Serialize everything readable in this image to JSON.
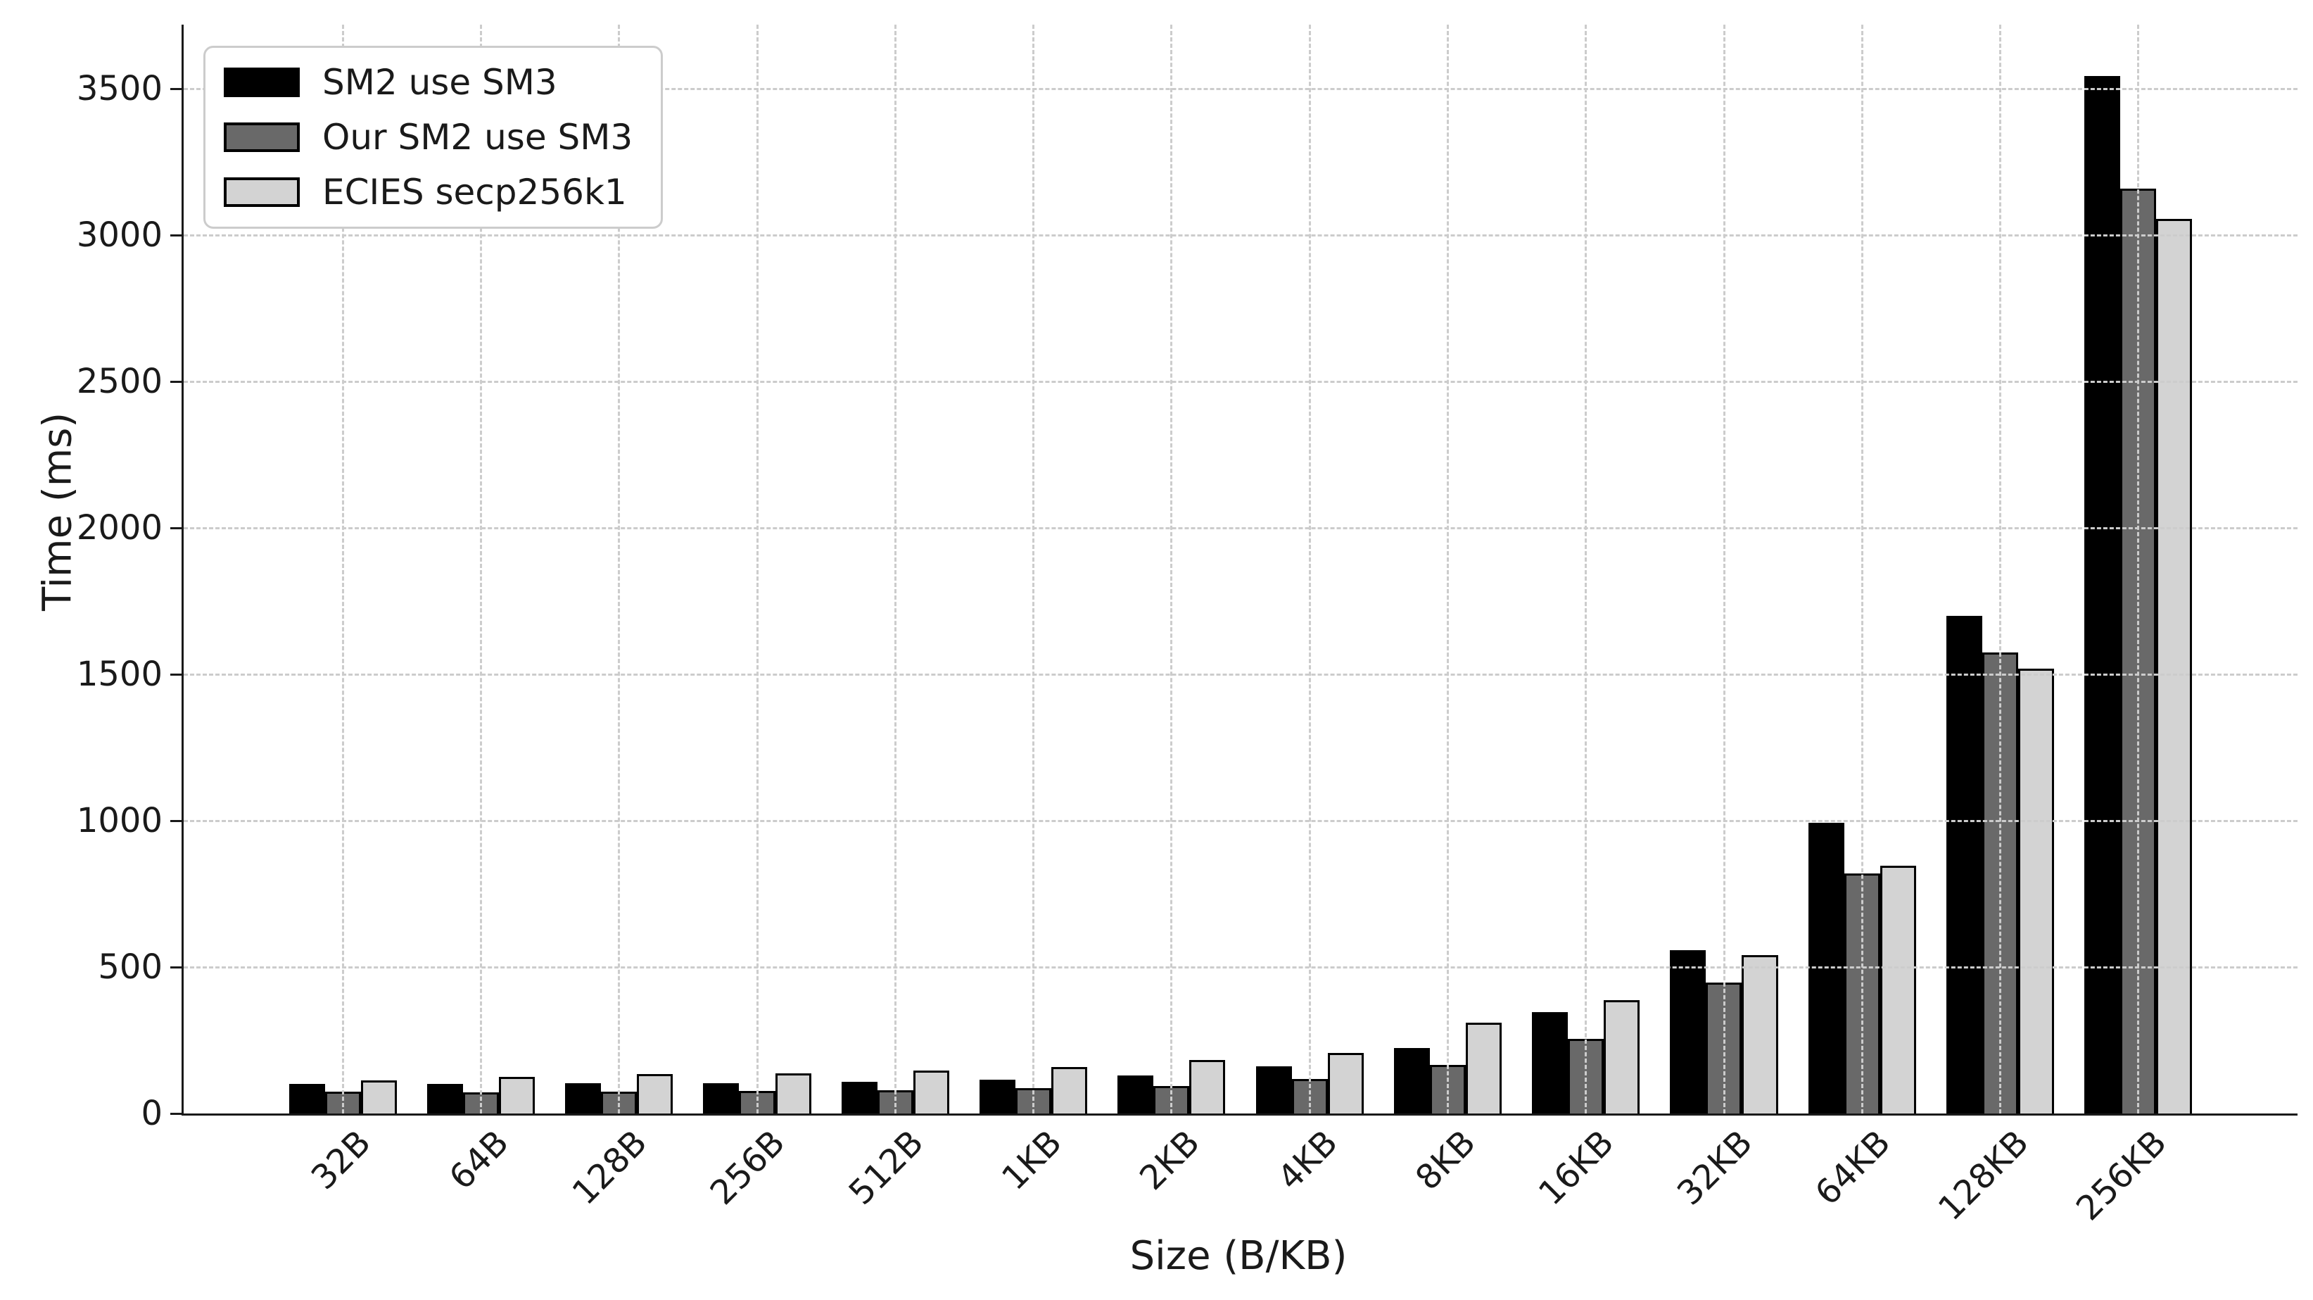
{
  "chart_data": {
    "type": "bar",
    "title": "",
    "xlabel": "Size (B/KB)",
    "ylabel": "Time (ms)",
    "categories": [
      "32B",
      "64B",
      "128B",
      "256B",
      "512B",
      "1KB",
      "2KB",
      "4KB",
      "8KB",
      "16KB",
      "32KB",
      "64KB",
      "128KB",
      "256KB"
    ],
    "series": [
      {
        "name": "SM2 use SM3",
        "color": "#000000",
        "values": [
          100,
          100,
          104,
          103,
          109,
          116,
          130,
          161,
          224,
          346,
          557,
          993,
          1700,
          3545
        ]
      },
      {
        "name": "Our SM2 use SM3",
        "color": "#696969",
        "values": [
          75,
          73,
          74,
          78,
          80,
          86,
          93,
          117,
          165,
          255,
          448,
          820,
          1575,
          3160
        ]
      },
      {
        "name": "ECIES secp256k1",
        "color": "#d3d3d3",
        "values": [
          114,
          126,
          134,
          137,
          146,
          158,
          183,
          207,
          310,
          388,
          540,
          846,
          1520,
          3056
        ]
      }
    ],
    "ylim": [
      0,
      3720
    ],
    "yticks": [
      0,
      500,
      1000,
      1500,
      2000,
      2500,
      3000,
      3500
    ],
    "grid": true,
    "grid_style": "dashed",
    "grid_color": "#cccccc",
    "legend_position": "upper-left",
    "bar_edge_color": "#000000",
    "axis_color": "#1a1a1a"
  }
}
